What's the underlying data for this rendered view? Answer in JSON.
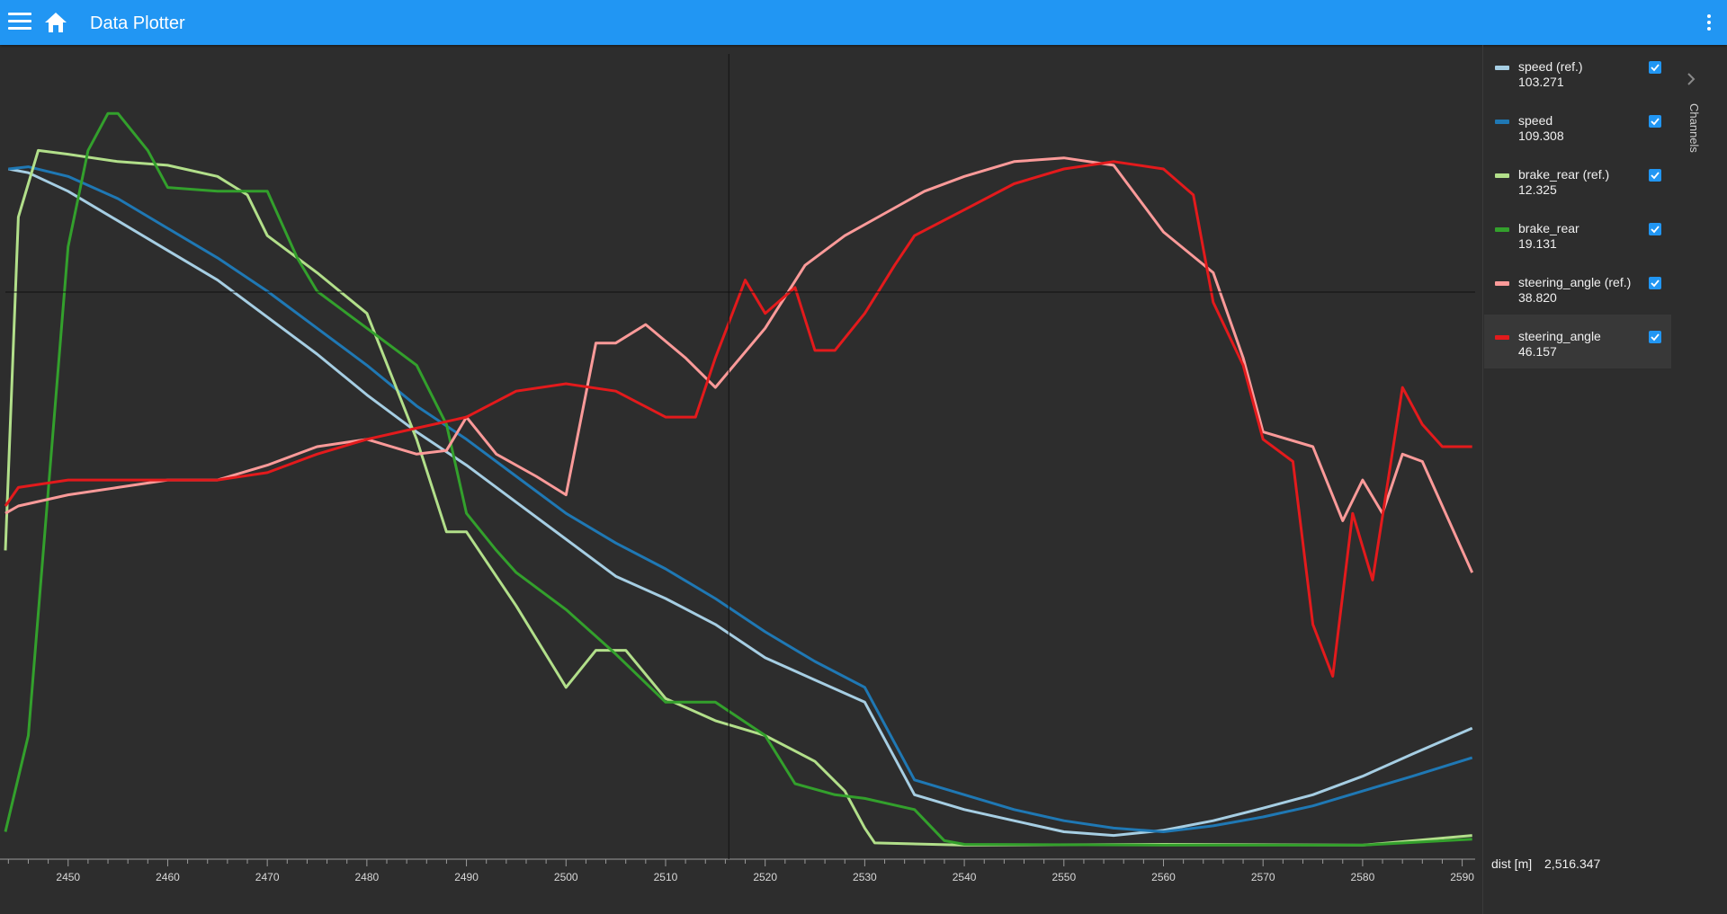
{
  "app": {
    "title": "Data Plotter",
    "side_panel_label": "Channels"
  },
  "readout": {
    "axis_label": "dist [m]",
    "cursor_value": "2,516.347"
  },
  "channels": [
    {
      "name": "speed (ref.)",
      "value": "103.271",
      "color": "#a6cee3",
      "checked": true,
      "selected": false
    },
    {
      "name": "speed",
      "value": "109.308",
      "color": "#1f78b4",
      "checked": true,
      "selected": false
    },
    {
      "name": "brake_rear (ref.)",
      "value": "12.325",
      "color": "#b2df8a",
      "checked": true,
      "selected": false
    },
    {
      "name": "brake_rear",
      "value": "19.131",
      "color": "#33a02c",
      "checked": true,
      "selected": false
    },
    {
      "name": "steering_angle (ref.)",
      "value": "38.820",
      "color": "#fb9a99",
      "checked": true,
      "selected": false
    },
    {
      "name": "steering_angle",
      "value": "46.157",
      "color": "#e31a1c",
      "checked": true,
      "selected": true
    }
  ],
  "chart_data": {
    "type": "line",
    "xlabel": "dist [m]",
    "x_range": [
      2443.7,
      2591.3
    ],
    "x_ticks": [
      2450,
      2460,
      2470,
      2480,
      2490,
      2500,
      2510,
      2520,
      2530,
      2540,
      2550,
      2560,
      2570,
      2580,
      2590
    ],
    "y_range": [
      0,
      100
    ],
    "grid": false,
    "cursor_x": 2516.347,
    "series": [
      {
        "name": "speed (ref.)",
        "color": "#a6cee3",
        "x": [
          2444,
          2446,
          2450,
          2455,
          2460,
          2465,
          2470,
          2475,
          2480,
          2485,
          2490,
          2495,
          2500,
          2505,
          2510,
          2515,
          2520,
          2525,
          2530,
          2535,
          2540,
          2545,
          2550,
          2555,
          2560,
          2565,
          2570,
          2575,
          2580,
          2585,
          2591
        ],
        "y": [
          91.5,
          91.0,
          88.5,
          84.5,
          80.5,
          76.5,
          71.5,
          66.5,
          61.0,
          56.0,
          51.5,
          46.5,
          41.5,
          36.5,
          33.5,
          30.0,
          25.5,
          22.5,
          19.5,
          7.0,
          5.0,
          3.5,
          2.0,
          1.5,
          2.2,
          3.5,
          5.2,
          7.0,
          9.5,
          12.5,
          16.0
        ]
      },
      {
        "name": "speed",
        "color": "#1f78b4",
        "x": [
          2444,
          2446,
          2450,
          2455,
          2460,
          2465,
          2470,
          2475,
          2480,
          2485,
          2490,
          2495,
          2500,
          2505,
          2510,
          2515,
          2520,
          2525,
          2530,
          2535,
          2540,
          2545,
          2550,
          2555,
          2560,
          2565,
          2570,
          2575,
          2580,
          2585,
          2591
        ],
        "y": [
          91.5,
          91.8,
          90.5,
          87.5,
          83.5,
          79.5,
          75.0,
          70.0,
          65.0,
          59.5,
          55.0,
          50.0,
          45.0,
          41.0,
          37.5,
          33.5,
          29.0,
          25.0,
          21.5,
          9.0,
          7.0,
          5.0,
          3.5,
          2.5,
          2.0,
          2.8,
          4.0,
          5.5,
          7.5,
          9.5,
          12.0
        ]
      },
      {
        "name": "brake_rear (ref.)",
        "color": "#b2df8a",
        "x": [
          2443.7,
          2445,
          2447,
          2450,
          2455,
          2460,
          2465,
          2468,
          2470,
          2475,
          2480,
          2485,
          2488,
          2490,
          2495,
          2500,
          2503,
          2506,
          2510,
          2515,
          2520,
          2525,
          2528,
          2530,
          2531,
          2540,
          2560,
          2580,
          2591
        ],
        "y": [
          40,
          85,
          94,
          93.5,
          92.5,
          92,
          90.5,
          88,
          82.5,
          77.5,
          72,
          55,
          42.5,
          42.5,
          32.5,
          21.5,
          26.5,
          26.5,
          20,
          17,
          15,
          11.5,
          7.5,
          2.5,
          0.5,
          0.2,
          0.3,
          0.2,
          1.5
        ]
      },
      {
        "name": "brake_rear",
        "color": "#33a02c",
        "x": [
          2443.7,
          2446,
          2448,
          2450,
          2452,
          2454,
          2455,
          2458,
          2460,
          2465,
          2470,
          2473,
          2475,
          2480,
          2485,
          2488,
          2490,
          2493,
          2495,
          2500,
          2505,
          2510,
          2515,
          2520,
          2523,
          2527,
          2530,
          2535,
          2538,
          2540,
          2560,
          2580,
          2591
        ],
        "y": [
          2,
          15,
          48,
          81,
          94,
          99,
          99,
          94,
          89,
          88.5,
          88.5,
          79.5,
          75,
          70,
          65,
          57,
          45,
          40,
          37,
          32,
          26,
          19.5,
          19.5,
          15,
          8.5,
          7,
          6.5,
          5,
          0.8,
          0.3,
          0.2,
          0.2,
          1.0
        ]
      },
      {
        "name": "steering_angle (ref.)",
        "color": "#fb9a99",
        "x": [
          2443.7,
          2445,
          2450,
          2455,
          2460,
          2465,
          2470,
          2475,
          2480,
          2485,
          2488,
          2490,
          2493,
          2497,
          2500,
          2503,
          2505,
          2508,
          2512,
          2515,
          2520,
          2524,
          2528,
          2532,
          2536,
          2540,
          2545,
          2550,
          2555,
          2560,
          2565,
          2568,
          2570,
          2575,
          2578,
          2580,
          2582,
          2584,
          2586,
          2591
        ],
        "y": [
          45,
          46,
          47.5,
          48.5,
          49.5,
          49.5,
          51.5,
          54,
          55,
          53,
          53.5,
          58,
          53,
          50,
          47.5,
          68,
          68,
          70.5,
          66,
          62,
          70,
          78.5,
          82.5,
          85.5,
          88.5,
          90.5,
          92.5,
          93,
          92,
          83,
          77.5,
          66,
          56,
          54,
          44,
          49.5,
          45,
          53,
          52,
          37
        ]
      },
      {
        "name": "steering_angle",
        "color": "#e31a1c",
        "x": [
          2443.7,
          2445,
          2450,
          2455,
          2460,
          2465,
          2470,
          2475,
          2480,
          2485,
          2490,
          2495,
          2500,
          2505,
          2510,
          2513,
          2515,
          2518,
          2520,
          2523,
          2525,
          2527,
          2530,
          2533,
          2535,
          2540,
          2545,
          2550,
          2555,
          2560,
          2563,
          2565,
          2568,
          2570,
          2573,
          2575,
          2577,
          2579,
          2581,
          2584,
          2586,
          2588,
          2591
        ],
        "y": [
          46,
          48.5,
          49.5,
          49.5,
          49.5,
          49.5,
          50.5,
          53,
          55,
          56.5,
          58,
          61.5,
          62.5,
          61.5,
          58,
          58,
          66,
          76.5,
          72,
          75.5,
          67,
          67,
          72,
          78.5,
          82.5,
          86,
          89.5,
          91.5,
          92.5,
          91.5,
          88,
          73.5,
          65,
          55,
          52,
          30,
          23,
          45,
          36,
          62,
          57,
          54,
          54
        ]
      }
    ]
  }
}
